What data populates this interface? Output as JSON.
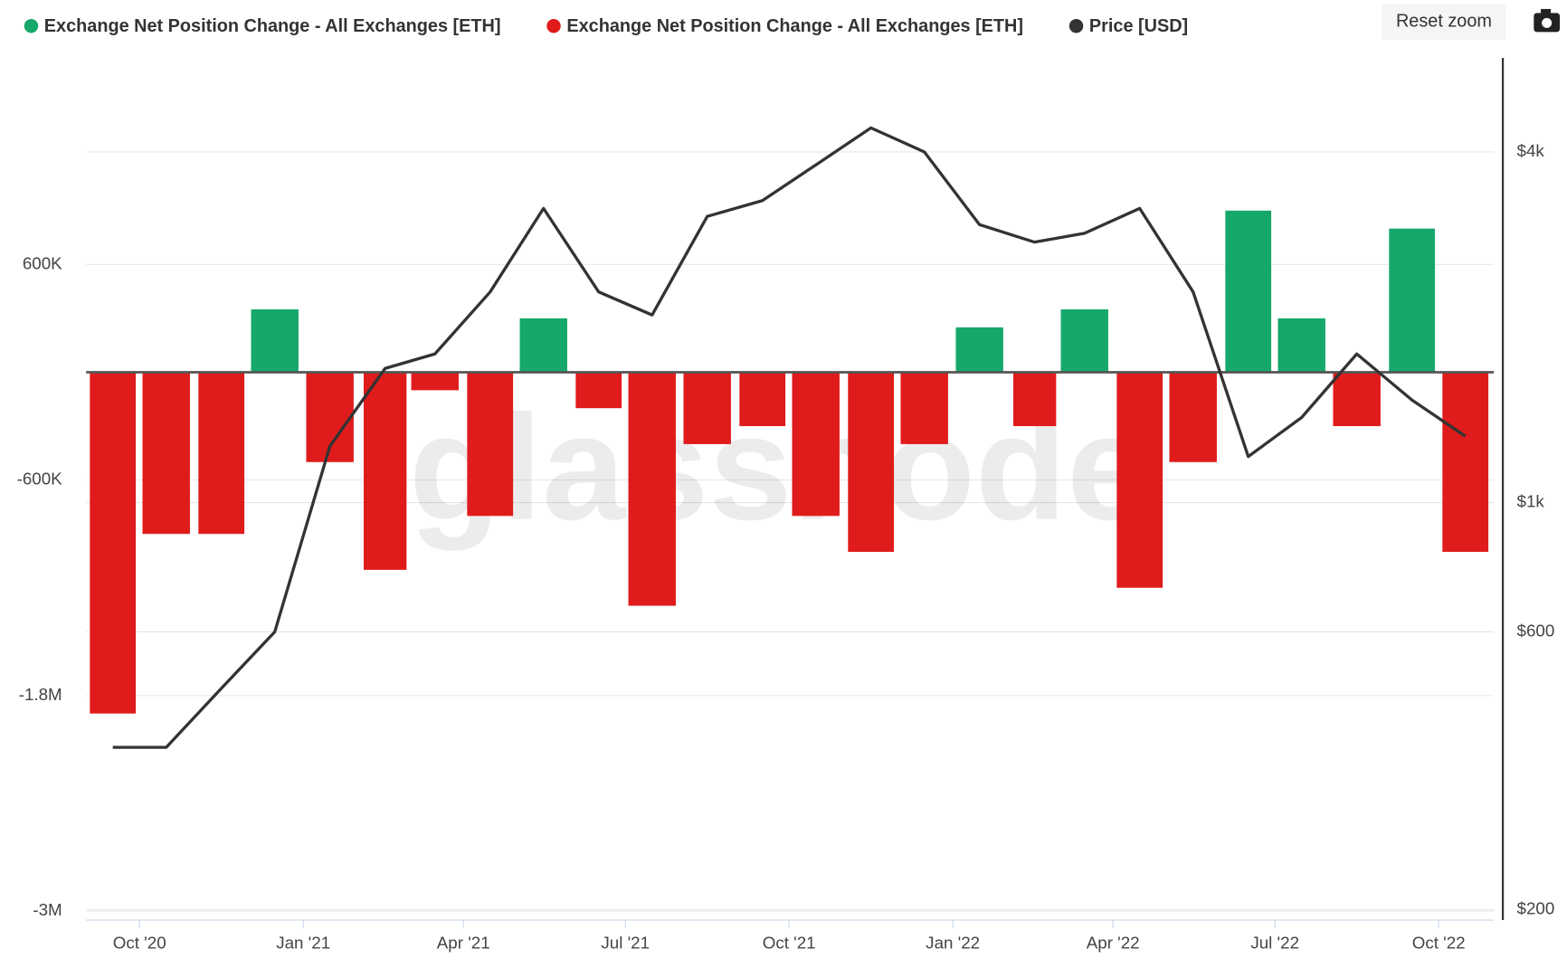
{
  "chart_data": {
    "type": "bar",
    "watermark": "glassnode",
    "reset_button": "Reset zoom",
    "x": [
      "2020-09",
      "2020-10",
      "2020-11",
      "2020-12",
      "2021-01",
      "2021-02",
      "2021-03",
      "2021-04",
      "2021-05",
      "2021-06",
      "2021-07",
      "2021-08",
      "2021-09",
      "2021-10",
      "2021-11",
      "2021-12",
      "2022-01",
      "2022-02",
      "2022-03",
      "2022-04",
      "2022-05",
      "2022-06",
      "2022-07",
      "2022-08",
      "2022-09",
      "2022-10"
    ],
    "xlim": [
      "2020-09",
      "2022-11"
    ],
    "xticks": [
      {
        "value": "2020-10",
        "label": "Oct '20"
      },
      {
        "value": "2021-01",
        "label": "Jan '21"
      },
      {
        "value": "2021-04",
        "label": "Apr '21"
      },
      {
        "value": "2021-07",
        "label": "Jul '21"
      },
      {
        "value": "2021-10",
        "label": "Oct '21"
      },
      {
        "value": "2022-01",
        "label": "Jan '22"
      },
      {
        "value": "2022-04",
        "label": "Apr '22"
      },
      {
        "value": "2022-07",
        "label": "Jul '22"
      },
      {
        "value": "2022-10",
        "label": "Oct '22"
      }
    ],
    "ylim": [
      -3050000,
      1750000
    ],
    "yticks": [
      {
        "value": 600000,
        "label": "600K"
      },
      {
        "value": -600000,
        "label": "-600K"
      },
      {
        "value": -1800000,
        "label": "-1.8M"
      },
      {
        "value": -3000000,
        "label": "-3M"
      }
    ],
    "y2lim": [
      192,
      5800
    ],
    "y2_log": true,
    "y2ticks": [
      {
        "value": 4000,
        "label": "$4k"
      },
      {
        "value": 1000,
        "label": "$1k"
      },
      {
        "value": 600,
        "label": "$600"
      },
      {
        "value": 200,
        "label": "$200"
      }
    ],
    "grid": true,
    "series": [
      {
        "name": "Exchange Net Position Change - All Exchanges [ETH]",
        "type": "bar",
        "color": "#16a86a",
        "values": [
          null,
          null,
          null,
          350000,
          null,
          null,
          null,
          null,
          300000,
          null,
          null,
          null,
          null,
          null,
          null,
          null,
          250000,
          null,
          350000,
          null,
          null,
          900000,
          300000,
          null,
          800000,
          null
        ]
      },
      {
        "name": "Exchange Net Position Change - All Exchanges [ETH]",
        "type": "bar",
        "color": "#e01b1b",
        "values": [
          -1900000,
          -900000,
          -900000,
          null,
          -500000,
          -1100000,
          -100000,
          -800000,
          null,
          -200000,
          -1300000,
          -400000,
          -300000,
          -800000,
          -1000000,
          -400000,
          null,
          -300000,
          null,
          -1200000,
          -500000,
          null,
          null,
          -300000,
          null,
          -1000000
        ]
      },
      {
        "name": "Price [USD]",
        "type": "line",
        "axis": "y2",
        "color": "#333333",
        "values": [
          380,
          380,
          480,
          600,
          1250,
          1700,
          1800,
          2300,
          3200,
          2300,
          2100,
          3100,
          3300,
          3800,
          4400,
          4000,
          3000,
          2800,
          2900,
          3200,
          2300,
          1200,
          1400,
          1800,
          1500,
          1300
        ]
      }
    ]
  }
}
